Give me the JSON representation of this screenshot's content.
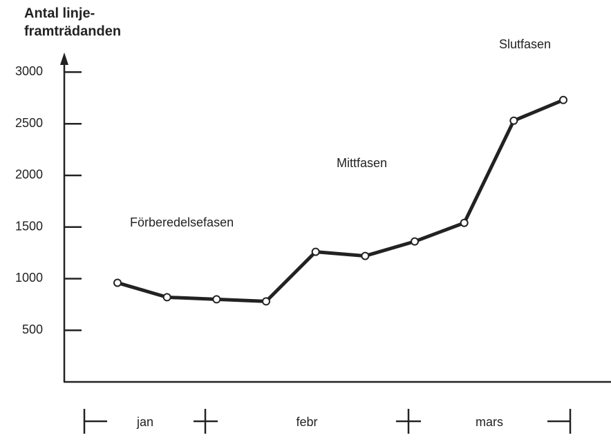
{
  "chart_data": {
    "type": "line",
    "y_label": [
      "Antal linje-",
      "framträdanden"
    ],
    "categories": [
      null,
      null,
      null,
      null,
      null,
      null,
      null,
      null,
      null,
      null
    ],
    "series": [
      {
        "name": null,
        "color": "#222222",
        "values": [
          960,
          820,
          800,
          780,
          1260,
          1220,
          1360,
          1540,
          2530,
          2730
        ]
      }
    ],
    "ylim": [
      0,
      3150
    ],
    "yticks": [
      500,
      1000,
      1500,
      2000,
      2500,
      3000
    ],
    "x_groups": [
      "jan",
      "febr",
      "mars"
    ],
    "annotations": [
      "Förberedelsefasen",
      "Mittfasen",
      "Slutfasen"
    ]
  }
}
